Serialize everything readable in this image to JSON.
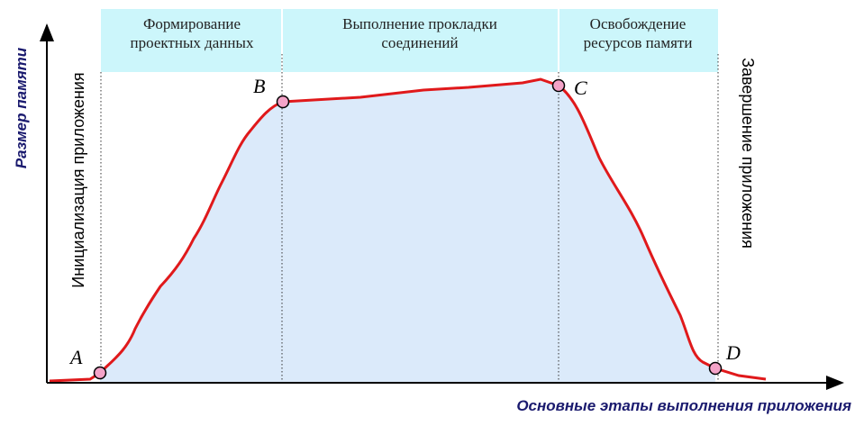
{
  "axes": {
    "y_label": "Размер памяти",
    "x_label": "Основные этапы выполнения приложения"
  },
  "phases": [
    {
      "lines": [
        "Формирование",
        "проектных данных"
      ]
    },
    {
      "lines": [
        "Выполнение прокладки",
        "соединений"
      ]
    },
    {
      "lines": [
        "Освобождение",
        "ресурсов памяти"
      ]
    }
  ],
  "side_labels": {
    "start": "Инициализация приложения",
    "end": "Завершение приложения"
  },
  "points": [
    "A",
    "B",
    "C",
    "D"
  ]
}
